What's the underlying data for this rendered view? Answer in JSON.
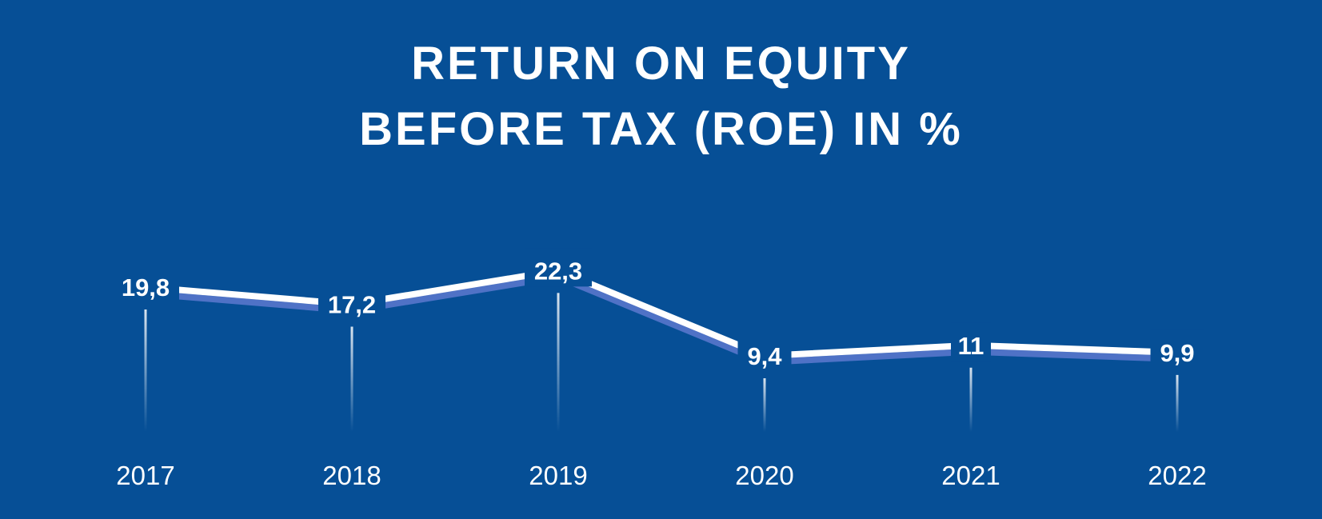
{
  "title_lines": [
    "RETURN ON EQUITY",
    "BEFORE TAX (ROE) IN %"
  ],
  "colors": {
    "background": "#064f96",
    "line": "#ffffff",
    "line_shadow": "#4f72c6",
    "text": "#ffffff"
  },
  "chart_data": {
    "type": "line",
    "title": "RETURN ON EQUITY BEFORE TAX (ROE) IN %",
    "categories": [
      "2017",
      "2018",
      "2019",
      "2020",
      "2021",
      "2022"
    ],
    "values": [
      19.8,
      17.2,
      22.3,
      9.4,
      11,
      9.9
    ],
    "data_labels": [
      "19,8",
      "17,2",
      "22,3",
      "9,4",
      "11",
      "9,9"
    ],
    "xlabel": "",
    "ylabel": "",
    "grid": false,
    "legend": "none"
  }
}
